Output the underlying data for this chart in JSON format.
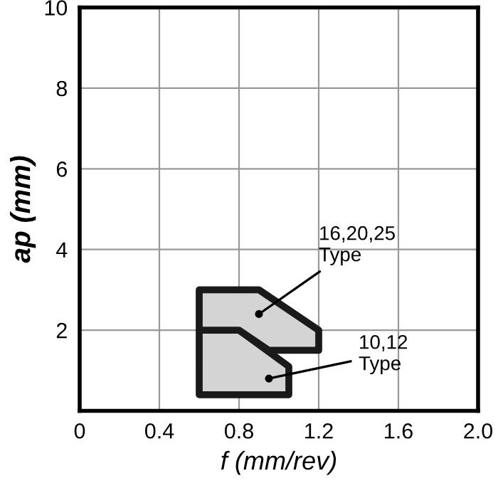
{
  "chart_data": {
    "type": "area",
    "xlabel": "f (mm/rev)",
    "ylabel": "ap (mm)",
    "xlim": [
      0,
      2
    ],
    "ylim": [
      0,
      10
    ],
    "xticks": [
      0,
      0.4,
      0.8,
      1.2,
      1.6,
      {
        "value": 2,
        "label": "2.0"
      }
    ],
    "yticks": [
      {
        "value": 0,
        "label": null
      },
      2,
      4,
      6,
      8,
      10
    ],
    "grid": true,
    "series": [
      {
        "color": "#d4d4d4",
        "x": [
          0.6,
          0.8,
          1.05,
          1.05,
          0.6
        ],
        "values": [
          2.0,
          2.0,
          1.1,
          0.4,
          0.4
        ]
      },
      {
        "color": "#d4d4d4",
        "x": [
          0.6,
          0.9,
          1.2,
          1.2,
          0.95,
          0.8,
          0.6
        ],
        "values": [
          3.0,
          3.0,
          2.0,
          1.5,
          1.5,
          2.0,
          2.0
        ]
      }
    ],
    "annotations": [
      {
        "text": "16,20,25\nType",
        "x": 0.9,
        "y": 2.4
      },
      {
        "text": "10,12\nType",
        "x": 0.95,
        "y": 0.8
      }
    ]
  }
}
